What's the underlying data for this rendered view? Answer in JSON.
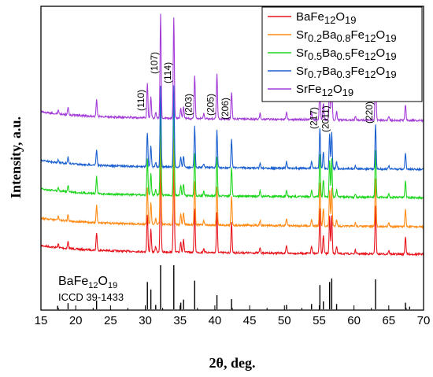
{
  "chart_data": {
    "type": "line",
    "xlabel": "2θ, deg.",
    "ylabel": "Intensity, a.u.",
    "xlim": [
      15,
      70
    ],
    "xticks": [
      15,
      20,
      25,
      30,
      35,
      40,
      45,
      50,
      55,
      60,
      65,
      70
    ],
    "legend_position": "top-right",
    "series": [
      {
        "name": "BaFe12O19",
        "label": {
          "base": "BaFe",
          "n1": "12",
          "mid": "O",
          "n2": "19"
        },
        "color": "#e8141c",
        "offset": 0
      },
      {
        "name": "Sr0.2Ba0.8Fe12O19",
        "label": {
          "base": "Sr",
          "n1": "0.2",
          "mid": "Ba",
          "n2": "0.8",
          "tail": "Fe",
          "n3": "12",
          "end": "O",
          "n4": "19"
        },
        "color": "#ff8a14",
        "offset": 1
      },
      {
        "name": "Sr0.5Ba0.5Fe12O19",
        "label": {
          "base": "Sr",
          "n1": "0.5",
          "mid": "Ba",
          "n2": "0.5",
          "tail": "Fe",
          "n3": "12",
          "end": "O",
          "n4": "19"
        },
        "color": "#1fd61f",
        "offset": 2
      },
      {
        "name": "Sr0.7Ba0.3Fe12O19",
        "label": {
          "base": "Sr",
          "n1": "0.7",
          "mid": "Ba",
          "n2": "0.3",
          "tail": "Fe",
          "n3": "12",
          "end": "O",
          "n4": "19"
        },
        "color": "#1a5fd0",
        "offset": 3
      },
      {
        "name": "SrFe12O19",
        "label": {
          "base": "SrFe",
          "n1": "12",
          "mid": "O",
          "n2": "19"
        },
        "color": "#a43cd8",
        "offset": 4
      }
    ],
    "peaks": [
      {
        "pos": 17.5,
        "h": 0.04
      },
      {
        "pos": 18.9,
        "h": 0.08
      },
      {
        "pos": 23.0,
        "h": 0.2
      },
      {
        "pos": 30.3,
        "h": 0.42
      },
      {
        "pos": 30.8,
        "h": 0.25
      },
      {
        "pos": 31.5,
        "h": 0.06
      },
      {
        "pos": 32.2,
        "h": 1.0
      },
      {
        "pos": 34.1,
        "h": 1.0
      },
      {
        "pos": 35.1,
        "h": 0.12
      },
      {
        "pos": 35.5,
        "h": 0.14
      },
      {
        "pos": 37.1,
        "h": 0.5
      },
      {
        "pos": 38.4,
        "h": 0.05
      },
      {
        "pos": 40.3,
        "h": 0.45
      },
      {
        "pos": 42.4,
        "h": 0.34
      },
      {
        "pos": 46.5,
        "h": 0.06
      },
      {
        "pos": 50.3,
        "h": 0.08
      },
      {
        "pos": 53.9,
        "h": 0.08
      },
      {
        "pos": 55.1,
        "h": 0.5
      },
      {
        "pos": 55.6,
        "h": 0.2
      },
      {
        "pos": 56.5,
        "h": 0.42
      },
      {
        "pos": 56.8,
        "h": 0.44
      },
      {
        "pos": 57.5,
        "h": 0.08
      },
      {
        "pos": 60.2,
        "h": 0.04
      },
      {
        "pos": 63.1,
        "h": 0.55
      },
      {
        "pos": 65.0,
        "h": 0.04
      },
      {
        "pos": 67.4,
        "h": 0.2
      }
    ],
    "peak_labels": [
      {
        "text": "(110)",
        "pos": 30.3
      },
      {
        "text": "(107)",
        "pos": 32.2
      },
      {
        "text": "(114)",
        "pos": 34.1
      },
      {
        "text": "(203)",
        "pos": 37.1
      },
      {
        "text": "(205)",
        "pos": 40.3
      },
      {
        "text": "(206)",
        "pos": 42.4
      },
      {
        "text": "(217)",
        "pos": 55.1
      },
      {
        "text": "(2011)",
        "pos": 56.8
      },
      {
        "text": "(220)",
        "pos": 63.1
      }
    ],
    "reference": {
      "compound": {
        "base": "BaFe",
        "n1": "12",
        "mid": "O",
        "n2": "19"
      },
      "card": "ICCD 39-1433",
      "lines": [
        [
          17.4,
          0.08
        ],
        [
          18.9,
          0.14
        ],
        [
          23.0,
          0.2
        ],
        [
          30.3,
          0.62
        ],
        [
          30.8,
          0.45
        ],
        [
          31.5,
          0.1
        ],
        [
          32.2,
          1.0
        ],
        [
          34.1,
          1.0
        ],
        [
          35.1,
          0.15
        ],
        [
          35.5,
          0.22
        ],
        [
          37.1,
          0.65
        ],
        [
          40.3,
          0.32
        ],
        [
          42.4,
          0.23
        ],
        [
          50.3,
          0.1
        ],
        [
          53.9,
          0.12
        ],
        [
          55.1,
          0.55
        ],
        [
          55.6,
          0.18
        ],
        [
          56.5,
          0.62
        ],
        [
          56.8,
          0.7
        ],
        [
          57.5,
          0.12
        ],
        [
          63.1,
          0.68
        ],
        [
          67.4,
          0.15
        ],
        [
          68.0,
          0.06
        ]
      ]
    }
  }
}
